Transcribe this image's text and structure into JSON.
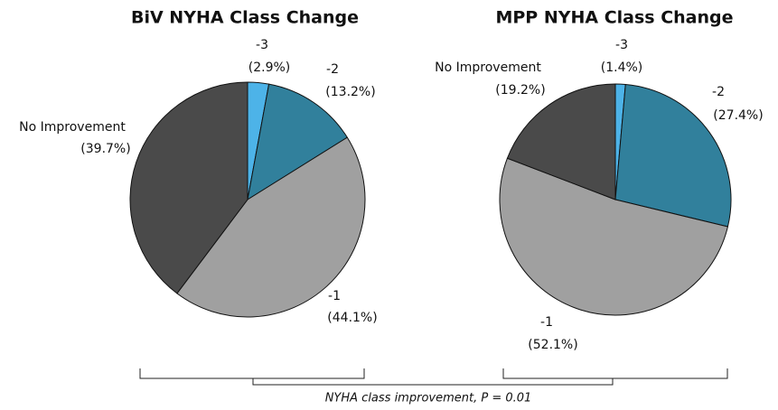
{
  "chart_data": [
    {
      "type": "pie",
      "title": "BiV NYHA Class Change",
      "categories": [
        "-3",
        "-2",
        "-1",
        "No Improvement"
      ],
      "values": [
        2.9,
        13.2,
        44.1,
        39.7
      ],
      "value_labels": [
        "(2.9%)",
        "(13.2%)",
        "(44.1%)",
        "(39.7%)"
      ],
      "colors": [
        "#4db3e8",
        "#31809c",
        "#a0a0a0",
        "#4a4a4a"
      ]
    },
    {
      "type": "pie",
      "title": "MPP NYHA Class Change",
      "categories": [
        "-3",
        "-2",
        "-1",
        "No Improvement"
      ],
      "values": [
        1.4,
        27.4,
        52.1,
        19.2
      ],
      "value_labels": [
        "(1.4%)",
        "(27.4%)",
        "(52.1%)",
        "(19.2%)"
      ],
      "colors": [
        "#4db3e8",
        "#31809c",
        "#a0a0a0",
        "#4a4a4a"
      ]
    }
  ],
  "annotation": "NYHA class improvement, P = 0.01"
}
